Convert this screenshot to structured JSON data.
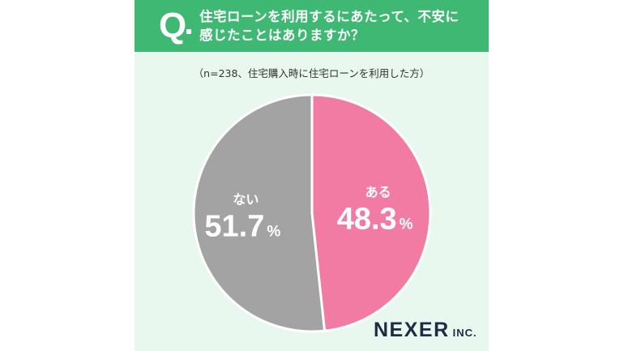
{
  "header": {
    "q_label": "Q",
    "question_lines": [
      "住宅ローンを利用するにあたって、不安に",
      "感じたことはありますか？"
    ]
  },
  "note": "（n=238、住宅購入時に住宅ローンを利用した方）",
  "chart_data": {
    "type": "pie",
    "title": "住宅ローンを利用するにあたって、不安に感じたことはありますか？",
    "subtitle": "（n=238、住宅購入時に住宅ローンを利用した方）",
    "n": 238,
    "unit": "%",
    "slices": [
      {
        "label": "ある",
        "value": 48.3,
        "value_text": "48.3",
        "color": "#f17ba3"
      },
      {
        "label": "ない",
        "value": 51.7,
        "value_text": "51.7",
        "color": "#a3a3a3"
      }
    ]
  },
  "logo": {
    "main": "NEXER",
    "sub": "INC."
  }
}
